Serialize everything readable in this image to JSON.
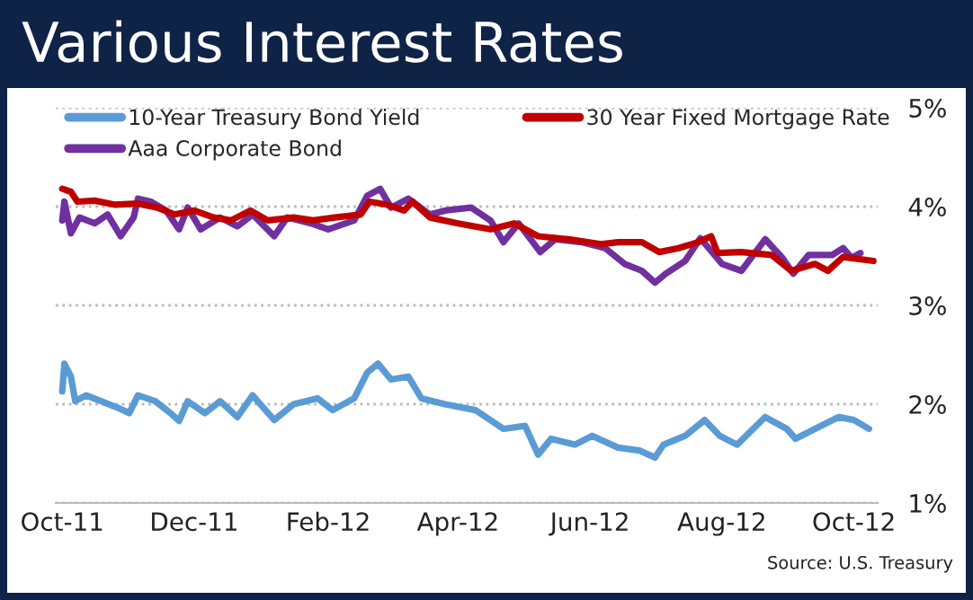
{
  "chart_data": {
    "type": "line",
    "title": "Various Interest Rates",
    "annotations": [
      "Source: U.S. Treasury"
    ],
    "xlim": [
      "2011-09-28",
      "2012-10-12"
    ],
    "xticks": [
      {
        "value": "2011-10-01",
        "label": "Oct-11"
      },
      {
        "value": "2011-12-01",
        "label": "Dec-11"
      },
      {
        "value": "2012-02-01",
        "label": "Feb-12"
      },
      {
        "value": "2012-04-01",
        "label": "Apr-12"
      },
      {
        "value": "2012-06-01",
        "label": "Jun-12"
      },
      {
        "value": "2012-08-01",
        "label": "Aug-12"
      },
      {
        "value": "2012-10-01",
        "label": "Oct-12"
      }
    ],
    "ylim": [
      1,
      5
    ],
    "yticks": [
      {
        "value": 1,
        "label": "1%"
      },
      {
        "value": 2,
        "label": "2%"
      },
      {
        "value": 3,
        "label": "3%"
      },
      {
        "value": 4,
        "label": "4%"
      },
      {
        "value": 5,
        "label": "5%"
      }
    ],
    "grid": "y",
    "legend": "top left",
    "marker": "none",
    "line_style": "solid",
    "series": [
      {
        "name": "10-Year Treasury Bond Yield",
        "color": "#5b9bd5",
        "x": [
          "2011-10-01",
          "2011-10-02",
          "2011-10-05",
          "2011-10-07",
          "2011-10-12",
          "2011-10-19",
          "2011-10-26",
          "2011-11-01",
          "2011-11-05",
          "2011-11-13",
          "2011-11-20",
          "2011-11-24",
          "2011-11-28",
          "2011-12-06",
          "2011-12-13",
          "2011-12-21",
          "2011-12-28",
          "2012-01-07",
          "2012-01-16",
          "2012-01-27",
          "2012-02-03",
          "2012-02-13",
          "2012-02-19",
          "2012-02-24",
          "2012-03-01",
          "2012-03-09",
          "2012-03-15",
          "2012-03-26",
          "2012-04-09",
          "2012-04-22",
          "2012-05-02",
          "2012-05-08",
          "2012-05-14",
          "2012-05-25",
          "2012-06-02",
          "2012-06-14",
          "2012-06-24",
          "2012-07-01",
          "2012-07-05",
          "2012-07-15",
          "2012-07-24",
          "2012-07-31",
          "2012-08-08",
          "2012-08-21",
          "2012-08-31",
          "2012-09-04",
          "2012-09-13",
          "2012-09-24",
          "2012-10-01",
          "2012-10-08"
        ],
        "values": [
          2.13,
          2.41,
          2.28,
          2.03,
          2.09,
          2.03,
          1.97,
          1.91,
          2.09,
          2.03,
          1.91,
          1.83,
          2.03,
          1.91,
          2.03,
          1.87,
          2.09,
          1.84,
          2.0,
          2.06,
          1.94,
          2.06,
          2.32,
          2.41,
          2.25,
          2.28,
          2.06,
          2.0,
          1.94,
          1.75,
          1.78,
          1.49,
          1.65,
          1.59,
          1.68,
          1.56,
          1.53,
          1.46,
          1.59,
          1.68,
          1.84,
          1.68,
          1.59,
          1.87,
          1.75,
          1.65,
          1.75,
          1.87,
          1.84,
          1.75
        ]
      },
      {
        "name": "Aaa Corporate Bond",
        "color": "#7030a0",
        "x": [
          "2011-10-01",
          "2011-10-02",
          "2011-10-05",
          "2011-10-09",
          "2011-10-16",
          "2011-10-22",
          "2011-10-28",
          "2011-11-03",
          "2011-11-05",
          "2011-11-11",
          "2011-11-18",
          "2011-11-24",
          "2011-11-28",
          "2011-12-04",
          "2011-12-13",
          "2011-12-21",
          "2011-12-28",
          "2012-01-07",
          "2012-01-13",
          "2012-01-24",
          "2012-02-01",
          "2012-02-13",
          "2012-02-19",
          "2012-02-25",
          "2012-03-01",
          "2012-03-09",
          "2012-03-19",
          "2012-03-26",
          "2012-04-07",
          "2012-04-16",
          "2012-04-22",
          "2012-04-29",
          "2012-05-09",
          "2012-05-16",
          "2012-05-28",
          "2012-06-08",
          "2012-06-17",
          "2012-06-25",
          "2012-07-01",
          "2012-07-06",
          "2012-07-15",
          "2012-07-22",
          "2012-08-01",
          "2012-08-10",
          "2012-08-21",
          "2012-08-29",
          "2012-09-03",
          "2012-09-10",
          "2012-09-21",
          "2012-09-26",
          "2012-09-30",
          "2012-10-04"
        ],
        "values": [
          3.86,
          4.05,
          3.73,
          3.89,
          3.83,
          3.92,
          3.7,
          3.89,
          4.08,
          4.05,
          3.96,
          3.77,
          3.99,
          3.77,
          3.89,
          3.8,
          3.92,
          3.7,
          3.89,
          3.83,
          3.77,
          3.86,
          4.11,
          4.18,
          3.99,
          4.08,
          3.92,
          3.96,
          3.99,
          3.86,
          3.64,
          3.83,
          3.54,
          3.67,
          3.64,
          3.58,
          3.42,
          3.35,
          3.23,
          3.32,
          3.45,
          3.68,
          3.42,
          3.35,
          3.67,
          3.48,
          3.32,
          3.51,
          3.51,
          3.58,
          3.48,
          3.53
        ]
      },
      {
        "name": "30 Year Fixed Mortgage Rate",
        "color": "#c00000",
        "x": [
          "2011-10-01",
          "2011-10-05",
          "2011-10-08",
          "2011-10-16",
          "2011-10-25",
          "2011-11-05",
          "2011-11-14",
          "2011-11-22",
          "2011-12-01",
          "2011-12-10",
          "2011-12-18",
          "2011-12-27",
          "2012-01-04",
          "2012-01-16",
          "2012-01-25",
          "2012-02-04",
          "2012-02-16",
          "2012-02-20",
          "2012-02-28",
          "2012-03-07",
          "2012-03-11",
          "2012-03-19",
          "2012-04-01",
          "2012-04-16",
          "2012-04-27",
          "2012-05-08",
          "2012-05-22",
          "2012-06-06",
          "2012-06-14",
          "2012-06-25",
          "2012-07-03",
          "2012-07-12",
          "2012-07-21",
          "2012-07-27",
          "2012-07-30",
          "2012-08-10",
          "2012-08-24",
          "2012-09-02",
          "2012-09-13",
          "2012-09-19",
          "2012-09-26",
          "2012-10-10"
        ],
        "values": [
          4.18,
          4.15,
          4.05,
          4.06,
          4.02,
          4.03,
          3.99,
          3.92,
          3.96,
          3.89,
          3.86,
          3.96,
          3.86,
          3.89,
          3.86,
          3.89,
          3.92,
          4.05,
          4.02,
          3.96,
          4.05,
          3.89,
          3.83,
          3.77,
          3.83,
          3.7,
          3.67,
          3.62,
          3.64,
          3.64,
          3.54,
          3.58,
          3.64,
          3.7,
          3.53,
          3.54,
          3.51,
          3.35,
          3.42,
          3.35,
          3.49,
          3.45
        ]
      }
    ]
  }
}
